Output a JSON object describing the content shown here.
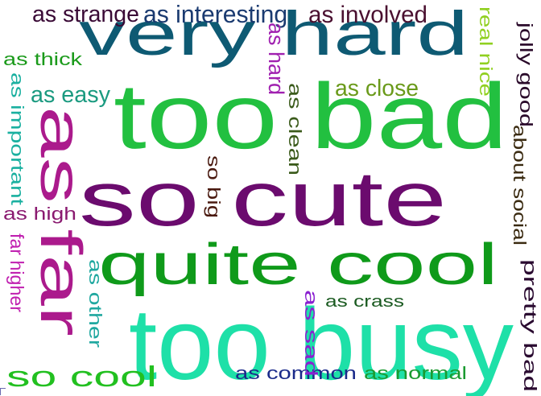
{
  "words": [
    {
      "text": "very hard",
      "color": "#0e5a73"
    },
    {
      "text": "too bad",
      "color": "#22c040"
    },
    {
      "text": "so cute",
      "color": "#6b0b6e"
    },
    {
      "text": "quite cool",
      "color": "#0f9a1a"
    },
    {
      "text": "too busy",
      "color": "#1ee0a8"
    },
    {
      "text": "as far",
      "color": "#ab1a8c"
    },
    {
      "text": "so cool",
      "color": "#22c020"
    },
    {
      "text": "as strange",
      "color": "#3a0a36"
    },
    {
      "text": "as interesting",
      "color": "#1a3a70"
    },
    {
      "text": "as involved",
      "color": "#4a1030"
    },
    {
      "text": "as thick",
      "color": "#1a9a1a"
    },
    {
      "text": "as easy",
      "color": "#1a9a80"
    },
    {
      "text": "as close",
      "color": "#6a9a1a"
    },
    {
      "text": "as high",
      "color": "#8a1a70"
    },
    {
      "text": "as crass",
      "color": "#1a5a20"
    },
    {
      "text": "as common",
      "color": "#1a2a8a"
    },
    {
      "text": "as normal",
      "color": "#1a9a30"
    },
    {
      "text": "as important",
      "color": "#1ab0a0"
    },
    {
      "text": "far higher",
      "color": "#c020b0"
    },
    {
      "text": "as other",
      "color": "#20a8a0"
    },
    {
      "text": "as hard",
      "color": "#a020b0"
    },
    {
      "text": "as clean",
      "color": "#3a5a1a"
    },
    {
      "text": "so big",
      "color": "#4a1a10"
    },
    {
      "text": "as sad",
      "color": "#8a20d0"
    },
    {
      "text": "real nice",
      "color": "#90d020"
    },
    {
      "text": "jolly good",
      "color": "#2a0a2a"
    },
    {
      "text": "about social",
      "color": "#3a2a10"
    },
    {
      "text": "pretty bad",
      "color": "#2a0a30"
    }
  ]
}
